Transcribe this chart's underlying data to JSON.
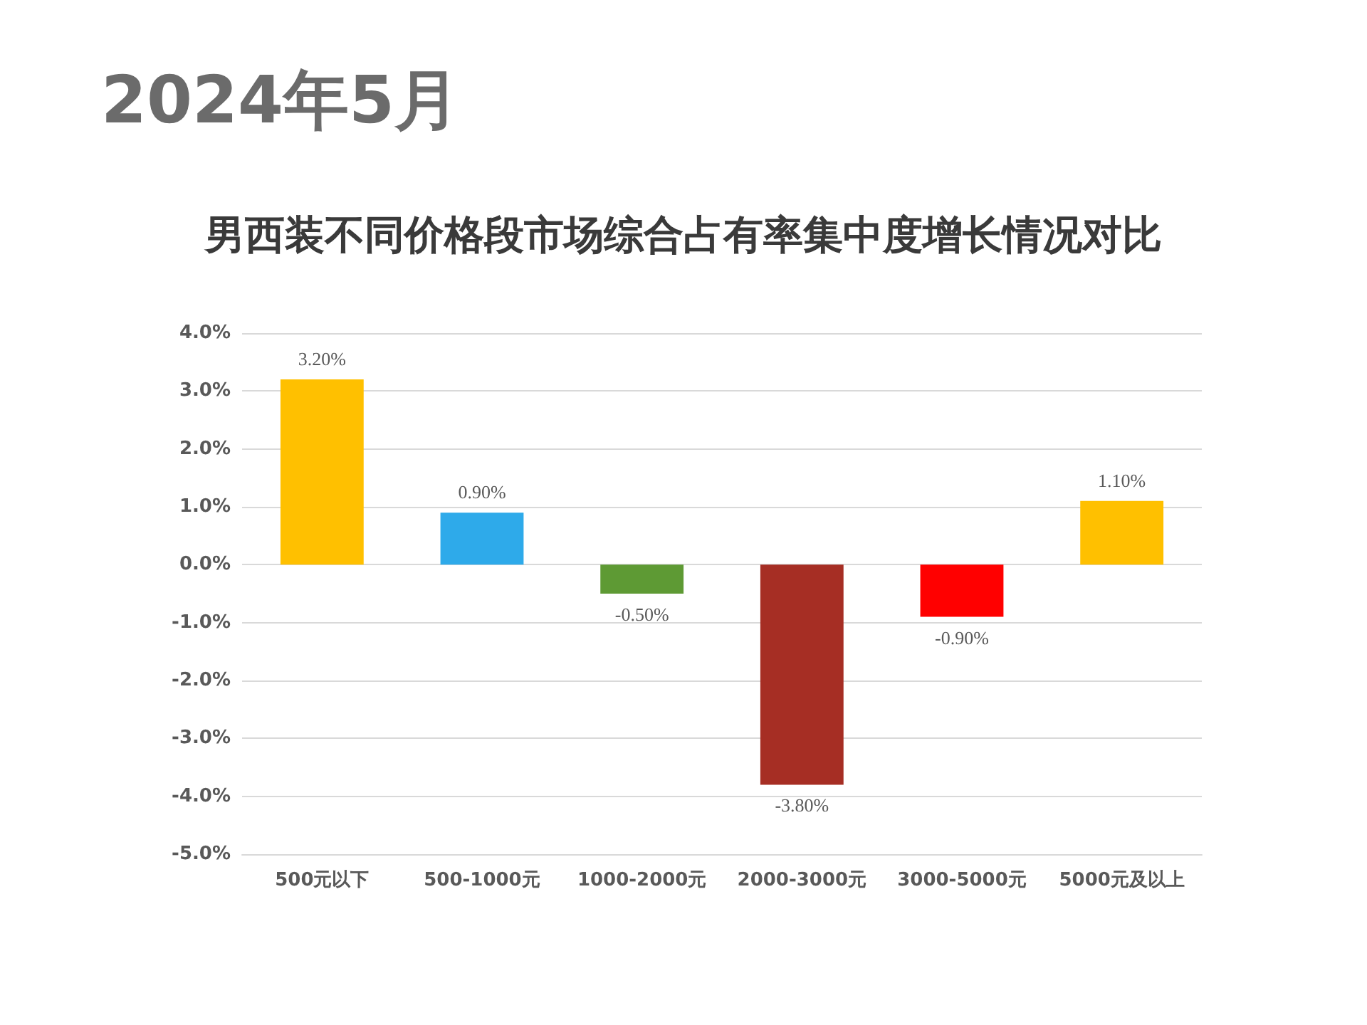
{
  "chart_data": {
    "type": "bar",
    "title": "男西装不同价格段市场综合占有率集中度增长情况对比",
    "subtitle": "2024年5月",
    "categories": [
      "500元以下",
      "500-1000元",
      "1000-2000元",
      "2000-3000元",
      "3000-5000元",
      "5000元及以上"
    ],
    "values": [
      3.2,
      0.9,
      -0.5,
      -3.8,
      -0.9,
      1.1
    ],
    "colors": [
      "#ffc000",
      "#2eaaea",
      "#5e9a34",
      "#a62e24",
      "#ff0000",
      "#ffc000"
    ],
    "value_labels": [
      "3.20%",
      "0.90%",
      "-0.50%",
      "-3.80%",
      "-0.90%",
      "1.10%"
    ],
    "ylim": [
      -5,
      4
    ],
    "yticks": [
      {
        "value": -5,
        "label": "-5.0%"
      },
      {
        "value": -4,
        "label": "-4.0%"
      },
      {
        "value": -3,
        "label": "-3.0%"
      },
      {
        "value": -2,
        "label": "-2.0%"
      },
      {
        "value": -1,
        "label": "-1.0%"
      },
      {
        "value": 0,
        "label": "0.0%"
      },
      {
        "value": 1,
        "label": "1.0%"
      },
      {
        "value": 2,
        "label": "2.0%"
      },
      {
        "value": 3,
        "label": "3.0%"
      },
      {
        "value": 4,
        "label": "4.0%"
      }
    ],
    "grid": "y"
  }
}
